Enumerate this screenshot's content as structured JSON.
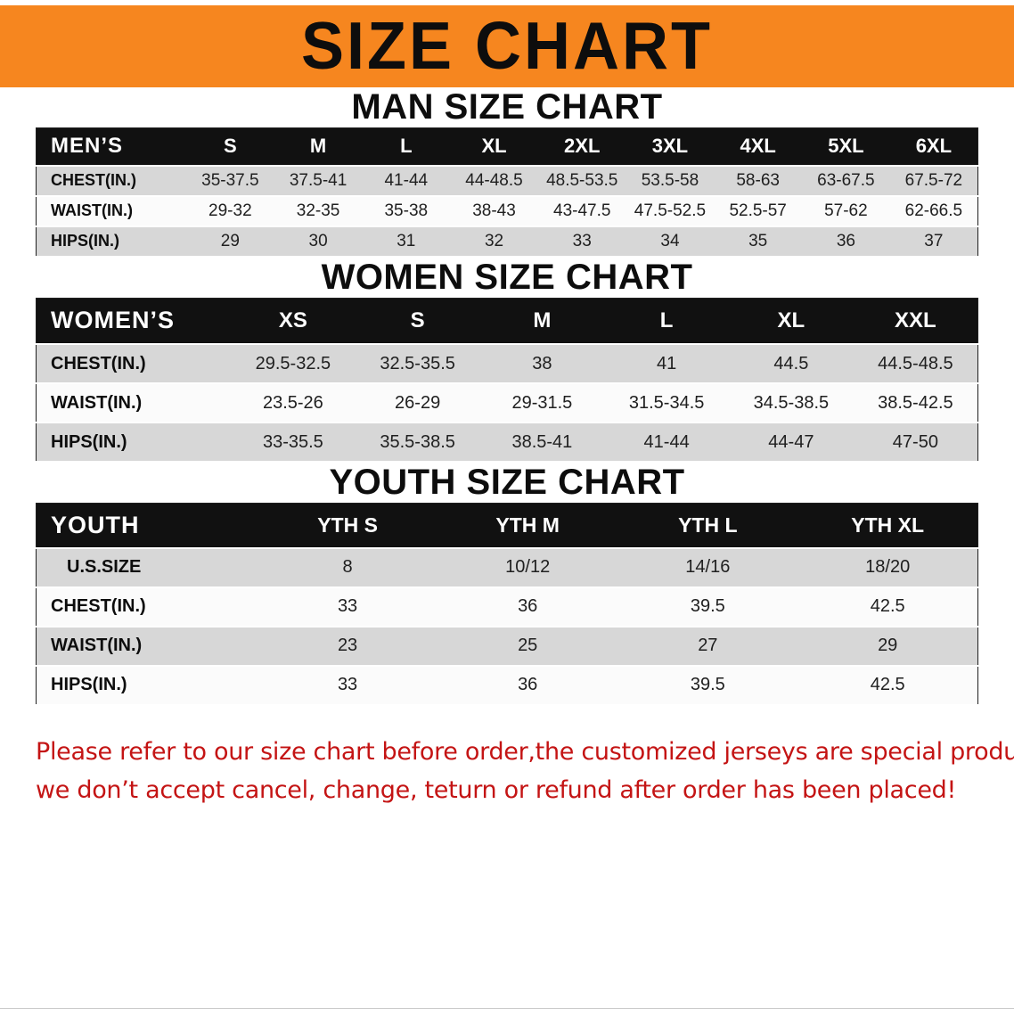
{
  "banner": {
    "title": "SIZE CHART"
  },
  "sections": [
    {
      "heading": "MAN SIZE CHART",
      "table": {
        "header": [
          "MEN’S",
          "S",
          "M",
          "L",
          "XL",
          "2XL",
          "3XL",
          "4XL",
          "5XL",
          "6XL"
        ],
        "rows": [
          [
            "CHEST(IN.)",
            "35-37.5",
            "37.5-41",
            "41-44",
            "44-48.5",
            "48.5-53.5",
            "53.5-58",
            "58-63",
            "63-67.5",
            "67.5-72"
          ],
          [
            "WAIST(IN.)",
            "29-32",
            "32-35",
            "35-38",
            "38-43",
            "43-47.5",
            "47.5-52.5",
            "52.5-57",
            "57-62",
            "62-66.5"
          ],
          [
            "HIPS(IN.)",
            "29",
            "30",
            "31",
            "32",
            "33",
            "34",
            "35",
            "36",
            "37"
          ]
        ]
      }
    },
    {
      "heading": "WOMEN SIZE CHART",
      "table": {
        "header": [
          "WOMEN’S",
          "XS",
          "S",
          "M",
          "L",
          "XL",
          "XXL"
        ],
        "rows": [
          [
            "CHEST(IN.)",
            "29.5-32.5",
            "32.5-35.5",
            "38",
            "41",
            "44.5",
            "44.5-48.5"
          ],
          [
            "WAIST(IN.)",
            "23.5-26",
            "26-29",
            "29-31.5",
            "31.5-34.5",
            "34.5-38.5",
            "38.5-42.5"
          ],
          [
            "HIPS(IN.)",
            "33-35.5",
            "35.5-38.5",
            "38.5-41",
            "41-44",
            "44-47",
            "47-50"
          ]
        ]
      }
    },
    {
      "heading": "YOUTH SIZE CHART",
      "table": {
        "header": [
          "YOUTH",
          "YTH S",
          "YTH M",
          "YTH L",
          "YTH XL"
        ],
        "rows": [
          [
            "U.S.SIZE",
            "8",
            "10/12",
            "14/16",
            "18/20"
          ],
          [
            "CHEST(IN.)",
            "33",
            "36",
            "39.5",
            "42.5"
          ],
          [
            "WAIST(IN.)",
            "23",
            "25",
            "27",
            "29"
          ],
          [
            "HIPS(IN.)",
            "33",
            "36",
            "39.5",
            "42.5"
          ]
        ]
      }
    }
  ],
  "footer": {
    "line1": "Please refer to our size chart before order,the customized jerseys are special products,",
    "line2": "we don’t accept cancel, change, teturn or refund after order has been placed!"
  },
  "colors": {
    "banner_bg": "#F6861F",
    "banner_text": "#0d0d0d",
    "table_header_bg": "#111111",
    "table_header_text": "#ffffff",
    "stripe_gray": "#d7d7d7",
    "stripe_white": "#fbfbfb",
    "notice_red": "#c41414"
  }
}
